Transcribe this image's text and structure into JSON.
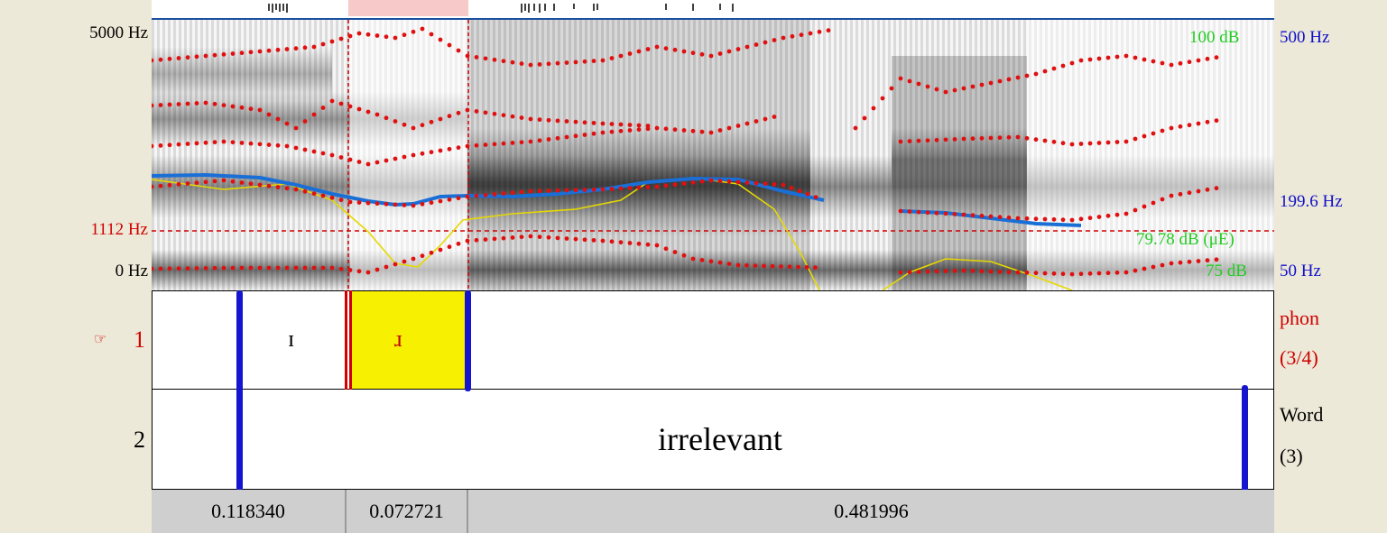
{
  "axes": {
    "freq_top": "5000 Hz",
    "freq_cursor": "1112 Hz",
    "freq_bottom": "0 Hz",
    "pitch_top": "500 Hz",
    "pitch_mid": "199.6 Hz",
    "pitch_bottom": "50 Hz",
    "intensity_top": "100 dB",
    "intensity_cursor": "79.78 dB (μE)",
    "intensity_bottom": "75 dB"
  },
  "tiers": [
    {
      "number": "1",
      "name": "phon",
      "count": "(3/4)",
      "active": true,
      "intervals": [
        {
          "label": "ɪ"
        },
        {
          "label": "ɹ",
          "selected": true
        }
      ]
    },
    {
      "number": "2",
      "name": "Word",
      "count": "(3)",
      "intervals": [
        {
          "label": "irrelevant"
        }
      ]
    }
  ],
  "durations": [
    "0.118340",
    "0.072721",
    "0.481996"
  ],
  "colors": {
    "formant": "#e01010",
    "pitch": "#1a6fd6",
    "intensity": "#e6d800",
    "boundary": "#1515d0",
    "selection": "#f7f000",
    "cursor": "#d00000"
  },
  "icons": {
    "active_tier": "pointing-hand-icon"
  }
}
